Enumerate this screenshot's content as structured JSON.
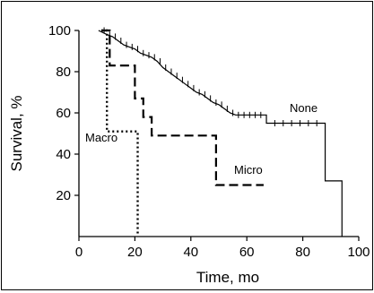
{
  "chart_data": {
    "type": "line",
    "subtype": "kaplan-meier",
    "xlabel": "Time, mo",
    "ylabel": "Survival, %",
    "xlim": [
      0,
      100
    ],
    "ylim": [
      0,
      100
    ],
    "xticks": [
      "0",
      "20",
      "40",
      "60",
      "80",
      "100"
    ],
    "yticks": [
      "20",
      "40",
      "60",
      "80",
      "100"
    ],
    "grid": false,
    "legend": "inline labels",
    "series": [
      {
        "name": "None",
        "style": "solid",
        "color": "#000000",
        "points": [
          [
            7,
            100
          ],
          [
            10,
            98
          ],
          [
            12,
            97
          ],
          [
            14,
            95
          ],
          [
            16,
            93
          ],
          [
            18,
            92
          ],
          [
            20,
            91
          ],
          [
            22,
            89
          ],
          [
            24,
            88
          ],
          [
            26,
            87
          ],
          [
            28,
            85
          ],
          [
            30,
            82
          ],
          [
            32,
            80
          ],
          [
            34,
            78
          ],
          [
            36,
            76
          ],
          [
            38,
            74
          ],
          [
            40,
            72
          ],
          [
            42,
            70
          ],
          [
            44,
            69
          ],
          [
            46,
            67
          ],
          [
            48,
            65
          ],
          [
            50,
            64
          ],
          [
            52,
            62
          ],
          [
            54,
            60
          ],
          [
            56,
            59
          ],
          [
            67,
            59
          ],
          [
            67,
            55
          ],
          [
            88,
            55
          ],
          [
            88,
            27
          ],
          [
            94,
            27
          ],
          [
            94,
            0
          ]
        ],
        "censor_x": [
          9,
          11,
          13,
          15,
          17,
          19,
          21,
          23,
          25,
          27,
          29,
          31,
          33,
          35,
          37,
          39,
          41,
          43,
          45,
          47,
          49,
          51,
          53,
          55,
          57,
          59,
          61,
          63,
          65,
          70,
          73,
          76,
          79,
          82,
          85
        ]
      },
      {
        "name": "Micro",
        "style": "dashed",
        "color": "#000000",
        "points": [
          [
            8,
            100
          ],
          [
            11,
            100
          ],
          [
            11,
            83
          ],
          [
            20,
            83
          ],
          [
            20,
            67
          ],
          [
            23,
            67
          ],
          [
            23,
            58
          ],
          [
            26,
            58
          ],
          [
            26,
            49
          ],
          [
            49,
            49
          ],
          [
            49,
            25
          ],
          [
            66,
            25
          ]
        ]
      },
      {
        "name": "Macro",
        "style": "dotted",
        "color": "#000000",
        "points": [
          [
            8,
            100
          ],
          [
            10,
            100
          ],
          [
            10,
            51
          ],
          [
            21,
            51
          ],
          [
            21,
            0
          ]
        ]
      }
    ]
  }
}
